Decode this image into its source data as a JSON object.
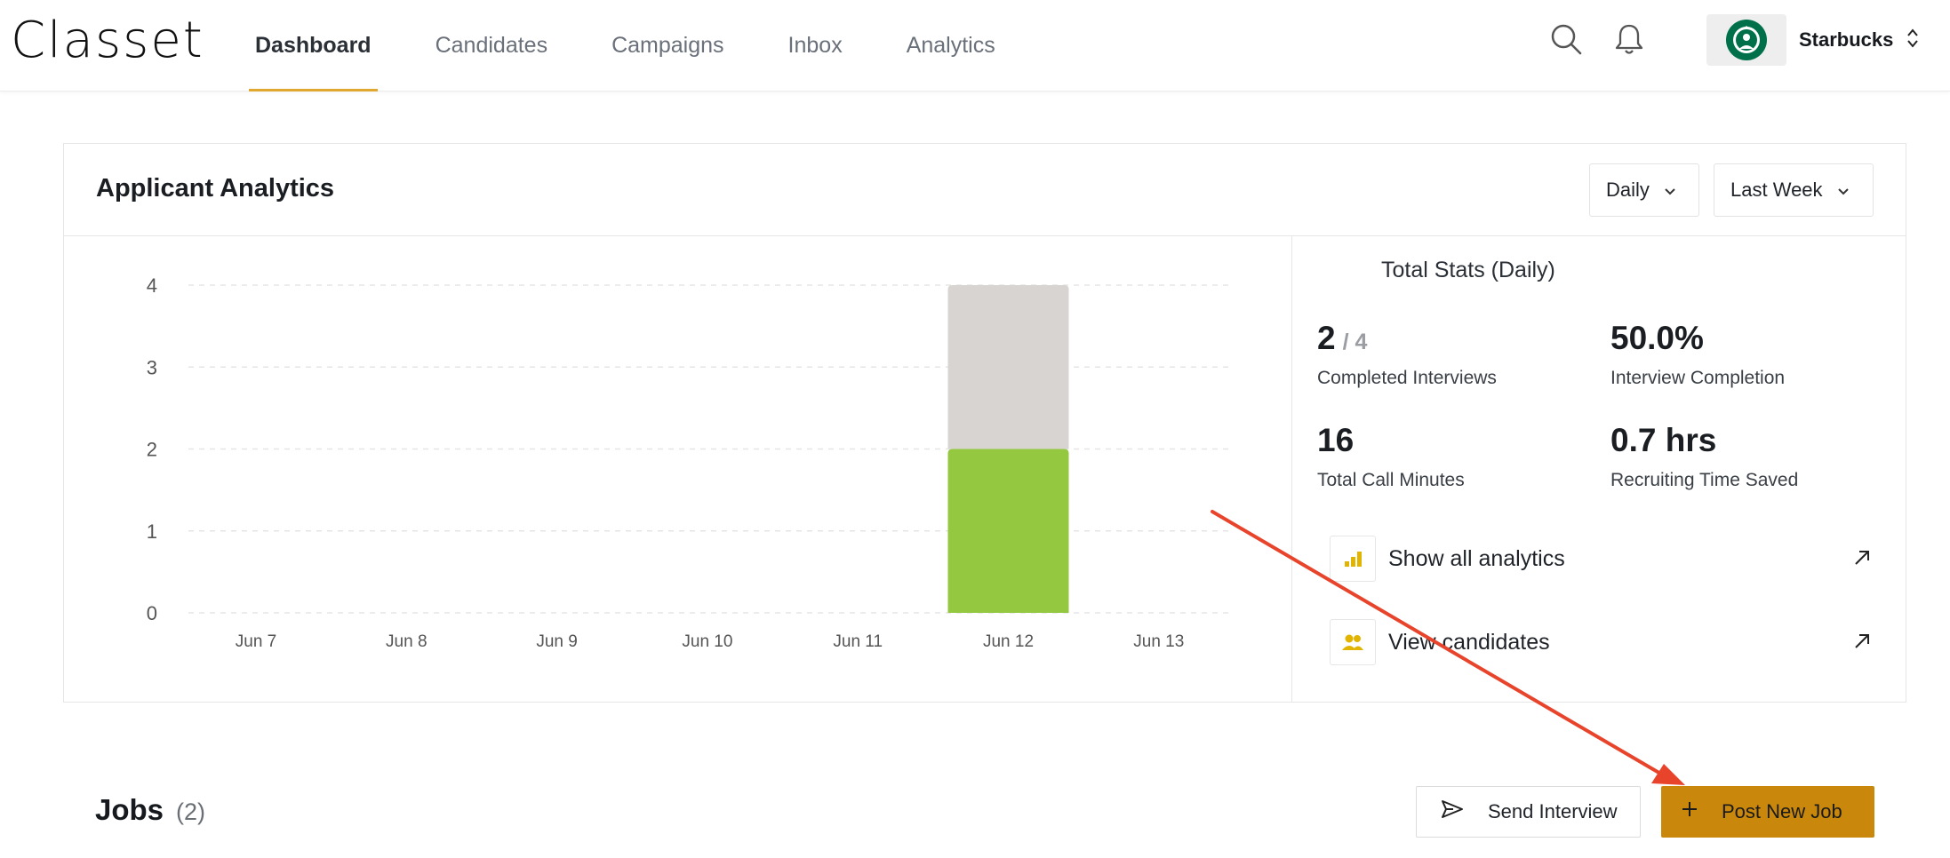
{
  "header": {
    "logo": "Classet",
    "nav": [
      {
        "label": "Dashboard",
        "active": true
      },
      {
        "label": "Candidates",
        "active": false
      },
      {
        "label": "Campaigns",
        "active": false
      },
      {
        "label": "Inbox",
        "active": false
      },
      {
        "label": "Analytics",
        "active": false
      }
    ],
    "icons": [
      "search-icon",
      "bell-icon"
    ],
    "org": {
      "name": "Starbucks",
      "avatar_icon": "starbucks-logo-icon",
      "chevron_icon": "up-down-chevron-icon"
    }
  },
  "analytics_card": {
    "title": "Applicant Analytics",
    "granularity_select": "Daily",
    "range_select": "Last Week",
    "stats_title": "Total Stats (Daily)",
    "stats": [
      {
        "value": "2",
        "suffix": "/ 4",
        "label": "Completed Interviews"
      },
      {
        "value": "50.0%",
        "suffix": "",
        "label": "Interview Completion"
      },
      {
        "value": "16",
        "suffix": "",
        "label": "Total Call Minutes"
      },
      {
        "value": "0.7 hrs",
        "suffix": "",
        "label": "Recruiting Time Saved"
      }
    ],
    "links": [
      {
        "label": "Show all analytics",
        "icon": "bar-chart-icon",
        "arrow_icon": "arrow-up-right-icon"
      },
      {
        "label": "View candidates",
        "icon": "users-icon",
        "arrow_icon": "arrow-up-right-icon"
      }
    ]
  },
  "chart_data": {
    "type": "bar",
    "stacked": true,
    "categories": [
      "Jun 7",
      "Jun 8",
      "Jun 9",
      "Jun 10",
      "Jun 11",
      "Jun 12",
      "Jun 13"
    ],
    "series": [
      {
        "color": "#94c840",
        "values": [
          0,
          0,
          0,
          0,
          0,
          2,
          0
        ]
      },
      {
        "color": "#d8d4d1",
        "values": [
          0,
          0,
          0,
          0,
          0,
          2,
          0
        ]
      }
    ],
    "yticks": [
      0,
      1,
      2,
      3,
      4
    ],
    "ylim": [
      0,
      4
    ],
    "grid": true,
    "title": "",
    "xlabel": "",
    "ylabel": ""
  },
  "jobs": {
    "title": "Jobs",
    "count": "(2)",
    "send_label": "Send Interview",
    "post_label": "Post New Job"
  },
  "colors": {
    "accent": "#e0a82e",
    "primary_button": "#c9880c",
    "annotation_arrow": "#e8442c",
    "link_icon": "#e0b400"
  }
}
